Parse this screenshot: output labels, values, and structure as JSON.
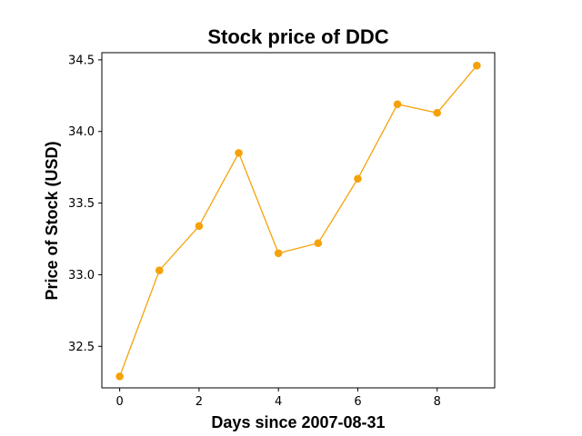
{
  "chart_data": {
    "type": "line",
    "title": "Stock price of DDC",
    "xlabel": "Days since 2007-08-31",
    "ylabel": "Price of Stock (USD)",
    "x": [
      0,
      1,
      2,
      3,
      4,
      5,
      6,
      7,
      8,
      9
    ],
    "series": [
      {
        "values": [
          32.29,
          33.03,
          33.34,
          33.85,
          33.15,
          33.22,
          33.67,
          34.19,
          34.13,
          34.46
        ],
        "color": "#f5a20a",
        "marker": "circle"
      }
    ],
    "xlim": [
      -0.45,
      9.45
    ],
    "ylim": [
      32.21,
      34.55
    ],
    "xticks": [
      0,
      2,
      4,
      6,
      8
    ],
    "xtick_labels": [
      "0",
      "2",
      "4",
      "6",
      "8"
    ],
    "yticks": [
      32.5,
      33.0,
      33.5,
      34.0,
      34.5
    ],
    "ytick_labels": [
      "32.5",
      "33.0",
      "33.5",
      "34.0",
      "34.5"
    ],
    "grid": false,
    "legend": "none"
  }
}
